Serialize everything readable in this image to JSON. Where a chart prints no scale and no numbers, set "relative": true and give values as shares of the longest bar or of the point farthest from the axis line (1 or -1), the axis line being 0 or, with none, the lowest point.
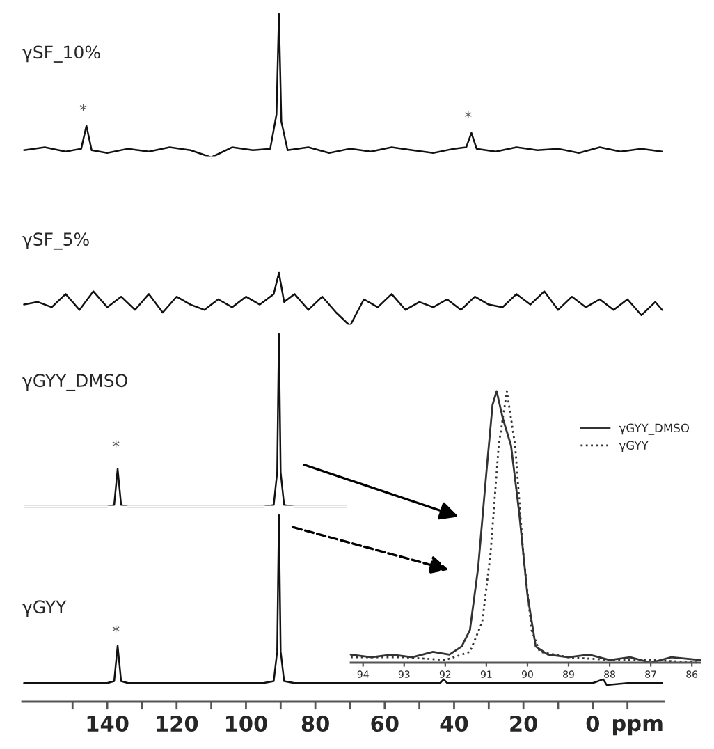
{
  "chart_data": [
    {
      "type": "line",
      "relative": true,
      "legend": false,
      "tick_labels": false,
      "xlim": [
        164.5,
        -20.5
      ],
      "annotations": [
        "*",
        "*"
      ],
      "series": [
        {
          "name": "γSF_10%",
          "color": "#111111",
          "x": [
            164,
            158,
            152,
            147.5,
            146,
            144.5,
            140,
            134,
            128,
            122,
            116,
            110,
            104,
            98,
            93,
            91.2,
            90.5,
            89.8,
            88,
            82,
            76,
            70,
            64,
            58,
            52,
            46,
            40,
            36.5,
            35,
            33.5,
            28,
            22,
            16,
            10,
            4,
            -2,
            -8,
            -14,
            -20
          ],
          "values": [
            0.05,
            0.07,
            0.04,
            0.06,
            0.22,
            0.05,
            0.03,
            0.06,
            0.04,
            0.07,
            0.05,
            0,
            0.07,
            0.05,
            0.06,
            0.3,
            1,
            0.25,
            0.05,
            0.07,
            0.03,
            0.06,
            0.04,
            0.07,
            0.05,
            0.03,
            0.06,
            0.07,
            0.17,
            0.06,
            0.04,
            0.07,
            0.05,
            0.06,
            0.03,
            0.07,
            0.04,
            0.06,
            0.04
          ]
        }
      ]
    },
    {
      "type": "line",
      "relative": true,
      "legend": false,
      "tick_labels": false,
      "xlim": [
        164.5,
        -20.5
      ],
      "series": [
        {
          "name": "γSF_5%",
          "color": "#111111",
          "x": [
            164,
            160,
            156,
            152,
            148,
            144,
            140,
            136,
            132,
            128,
            124,
            120,
            116,
            112,
            108,
            104,
            100,
            96,
            92,
            90.5,
            89,
            86,
            82,
            78,
            74,
            70,
            66,
            62,
            58,
            54,
            50,
            46,
            42,
            38,
            34,
            30,
            26,
            22,
            18,
            14,
            10,
            6,
            2,
            -2,
            -6,
            -10,
            -14,
            -18,
            -20
          ],
          "values": [
            0.4,
            0.45,
            0.35,
            0.6,
            0.3,
            0.65,
            0.35,
            0.55,
            0.3,
            0.6,
            0.25,
            0.55,
            0.4,
            0.3,
            0.5,
            0.35,
            0.55,
            0.4,
            0.6,
            1,
            0.45,
            0.6,
            0.3,
            0.55,
            0.25,
            0,
            0.5,
            0.35,
            0.6,
            0.3,
            0.45,
            0.35,
            0.5,
            0.3,
            0.55,
            0.4,
            0.35,
            0.6,
            0.4,
            0.65,
            0.3,
            0.55,
            0.35,
            0.5,
            0.3,
            0.5,
            0.2,
            0.45,
            0.3
          ]
        }
      ]
    },
    {
      "type": "line",
      "relative": true,
      "legend": false,
      "tick_labels": false,
      "xlim": [
        164.5,
        -20.5
      ],
      "annotations": [
        "*"
      ],
      "series": [
        {
          "name": "γGYY_DMSO",
          "color": "#111111",
          "x": [
            164,
            140,
            138,
            137,
            136,
            134,
            95,
            92,
            91,
            90.5,
            90,
            89,
            86,
            71
          ],
          "values": [
            0,
            0,
            0.01,
            0.22,
            0.01,
            0,
            0,
            0.01,
            0.2,
            1,
            0.2,
            0.01,
            0,
            0
          ]
        }
      ]
    },
    {
      "type": "line",
      "relative": true,
      "legend": false,
      "tick_labels": "x",
      "xlabel": "ppm",
      "xlim": [
        164.5,
        -20.5
      ],
      "xticks": [
        {
          "value": 150,
          "label": null
        },
        140,
        {
          "value": 130,
          "label": null
        },
        120,
        {
          "value": 110,
          "label": null
        },
        100,
        {
          "value": 90,
          "label": null
        },
        80,
        {
          "value": 70,
          "label": null
        },
        60,
        {
          "value": 50,
          "label": null
        },
        40,
        {
          "value": 30,
          "label": null
        },
        20,
        {
          "value": 10,
          "label": null
        },
        0,
        {
          "value": -10,
          "label": null
        }
      ],
      "annotations": [
        "*"
      ],
      "series": [
        {
          "name": "γGYY",
          "color": "#111111",
          "x": [
            164,
            140,
            138,
            137,
            136,
            134,
            95,
            92,
            91,
            90.5,
            90,
            89,
            86,
            50,
            44,
            43,
            42,
            36,
            0,
            -3,
            -4,
            -10,
            -20
          ],
          "values": [
            0.1,
            0.1,
            0.11,
            0.3,
            0.11,
            0.1,
            0.1,
            0.11,
            0.27,
            1,
            0.27,
            0.11,
            0.1,
            0.1,
            0.1,
            0.12,
            0.1,
            0.1,
            0.1,
            0.12,
            0.09,
            0.1,
            0.1
          ]
        }
      ]
    },
    {
      "type": "line",
      "relative": true,
      "legend": "top right",
      "tick_labels": "x",
      "xlim": [
        94.3,
        85.8
      ],
      "xticks": [
        94,
        93,
        92,
        91,
        90,
        89,
        88,
        87,
        86
      ],
      "series": [
        {
          "name": "γGYY_DMSO",
          "color": "#333333",
          "line_style": "solid",
          "x": [
            94.3,
            93.8,
            93.3,
            92.8,
            92.3,
            91.9,
            91.6,
            91.4,
            91.2,
            91.0,
            90.85,
            90.75,
            90.6,
            90.4,
            90.2,
            90.0,
            89.8,
            89.5,
            89.0,
            88.5,
            88.0,
            87.5,
            87.0,
            86.5,
            85.8
          ],
          "values": [
            0.03,
            0.02,
            0.03,
            0.02,
            0.04,
            0.03,
            0.06,
            0.12,
            0.35,
            0.7,
            0.95,
            1,
            0.9,
            0.8,
            0.55,
            0.25,
            0.06,
            0.03,
            0.02,
            0.03,
            0.01,
            0.02,
            0,
            0.02,
            0.01
          ]
        },
        {
          "name": "γGYY",
          "color": "#333333",
          "line_style": "dotted",
          "x": [
            94.3,
            93,
            92,
            91.4,
            91.1,
            90.9,
            90.7,
            90.5,
            90.3,
            90.1,
            89.9,
            89.7,
            89,
            88,
            87,
            85.8
          ],
          "values": [
            0.02,
            0.02,
            0.01,
            0.04,
            0.15,
            0.4,
            0.8,
            1,
            0.8,
            0.4,
            0.12,
            0.04,
            0.02,
            0.01,
            0.01,
            0
          ]
        }
      ]
    }
  ]
}
